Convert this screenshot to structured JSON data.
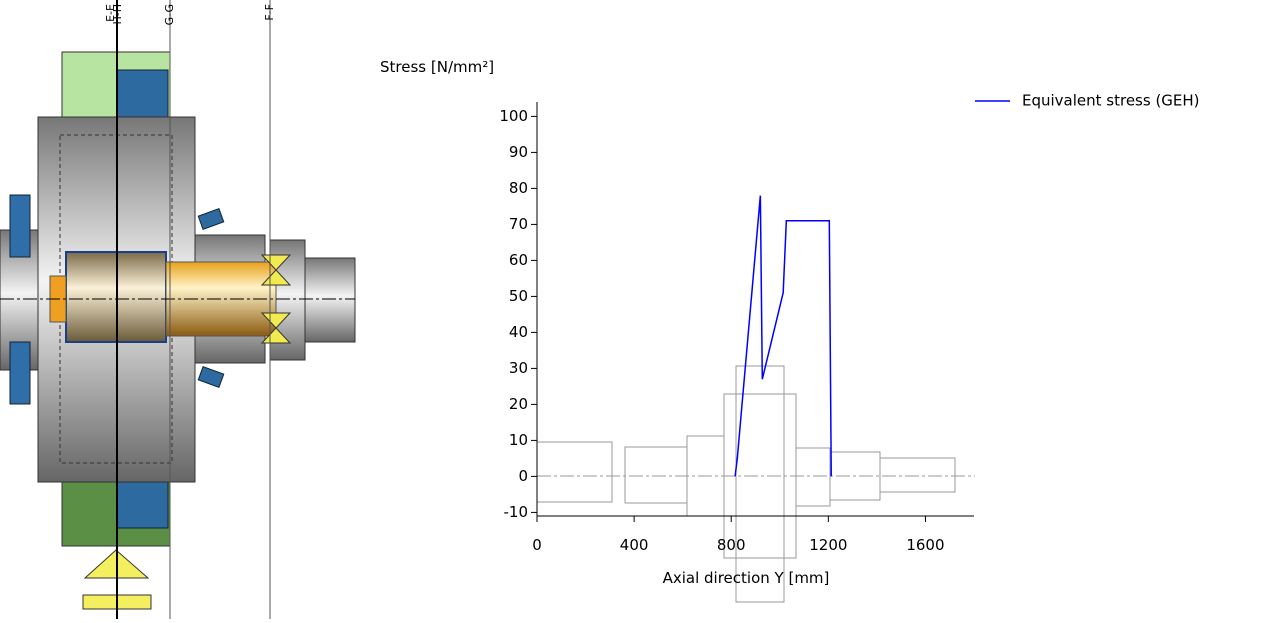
{
  "sections": [
    "E-E",
    "H-H",
    "G-G",
    "F-F"
  ],
  "chart_data": {
    "type": "line",
    "ylabel": "Stress [N/mm²]",
    "xlabel": "Axial direction Y [mm]",
    "xlim": [
      0,
      1800
    ],
    "ylim": [
      -11,
      104
    ],
    "xticks": [
      0,
      400,
      800,
      1200,
      1600
    ],
    "yticks": [
      -10,
      0,
      10,
      20,
      30,
      40,
      50,
      60,
      70,
      80,
      90,
      100
    ],
    "legend": "top-right",
    "series": [
      {
        "name": "Equivalent stress (GEH)",
        "color": "#0000ff",
        "x": [
          816,
          825,
          920,
          928,
          1014,
          1027,
          1204,
          1212
        ],
        "values": [
          0,
          5,
          78,
          27,
          51,
          71,
          71,
          0
        ]
      }
    ]
  }
}
